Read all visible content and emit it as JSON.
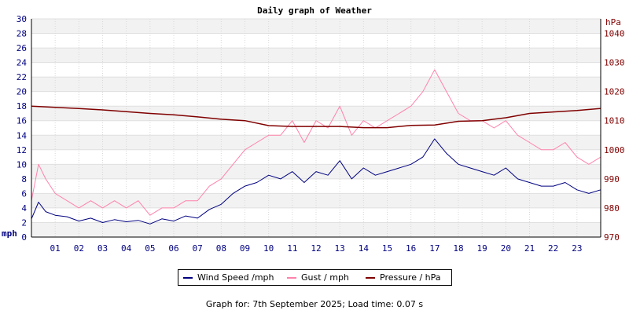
{
  "chart_data": {
    "type": "line",
    "title": "Daily graph of Weather",
    "left_axis": {
      "unit": "mph",
      "ylim": [
        0,
        30
      ],
      "ticks": [
        0,
        2,
        4,
        6,
        8,
        10,
        12,
        14,
        16,
        18,
        20,
        22,
        24,
        26,
        28,
        30
      ],
      "color": "#000080"
    },
    "right_axis": {
      "unit": "hPa",
      "ylim": [
        970,
        1045
      ],
      "ticks": [
        970,
        980,
        990,
        1000,
        1010,
        1020,
        1030,
        1040
      ],
      "color": "#800000"
    },
    "x_ticks": [
      "01",
      "02",
      "03",
      "04",
      "05",
      "06",
      "07",
      "08",
      "09",
      "10",
      "11",
      "12",
      "13",
      "14",
      "15",
      "16",
      "17",
      "18",
      "19",
      "20",
      "21",
      "22",
      "23"
    ],
    "x_range_hours": [
      0,
      24
    ],
    "grid": true,
    "series": [
      {
        "name": "Wind Speed /mph",
        "color": "#000080",
        "axis": "left",
        "x": [
          0,
          0.3,
          0.6,
          1,
          1.5,
          2,
          2.5,
          3,
          3.5,
          4,
          4.5,
          5,
          5.5,
          6,
          6.5,
          7,
          7.5,
          8,
          8.5,
          9,
          9.5,
          10,
          10.5,
          11,
          11.5,
          12,
          12.5,
          13,
          13.5,
          14,
          14.5,
          15,
          15.5,
          16,
          16.5,
          17,
          17.5,
          18,
          18.5,
          19,
          19.5,
          20,
          20.5,
          21,
          21.5,
          22,
          22.5,
          23,
          23.5,
          24
        ],
        "values": [
          2.5,
          4.8,
          3.5,
          3.0,
          2.8,
          2.2,
          2.6,
          2.0,
          2.4,
          2.1,
          2.3,
          1.8,
          2.5,
          2.2,
          2.9,
          2.6,
          3.8,
          4.5,
          6.0,
          7.0,
          7.5,
          8.5,
          8.0,
          9.0,
          7.5,
          9.0,
          8.5,
          10.5,
          8.0,
          9.5,
          8.5,
          9.0,
          9.5,
          10.0,
          11.0,
          13.5,
          11.5,
          10.0,
          9.5,
          9.0,
          8.5,
          9.5,
          8.0,
          7.5,
          7.0,
          7.0,
          7.5,
          6.5,
          6.0,
          6.5
        ]
      },
      {
        "name": "Gust / mph",
        "color": "#ff82ab",
        "axis": "left",
        "x": [
          0,
          0.3,
          0.6,
          1,
          1.5,
          2,
          2.5,
          3,
          3.5,
          4,
          4.5,
          5,
          5.5,
          6,
          6.5,
          7,
          7.5,
          8,
          8.5,
          9,
          9.5,
          10,
          10.5,
          11,
          11.5,
          12,
          12.5,
          13,
          13.5,
          14,
          14.5,
          15,
          15.5,
          16,
          16.5,
          17,
          17.5,
          18,
          18.5,
          19,
          19.5,
          20,
          20.5,
          21,
          21.5,
          22,
          22.5,
          23,
          23.5,
          24
        ],
        "values": [
          5,
          10,
          8,
          6,
          5,
          4,
          5,
          4,
          5,
          4,
          5,
          3,
          4,
          4,
          5,
          5,
          7,
          8,
          10,
          12,
          13,
          14,
          14,
          16,
          13,
          16,
          15,
          18,
          14,
          16,
          15,
          16,
          17,
          18,
          20,
          23,
          20,
          17,
          16,
          16,
          15,
          16,
          14,
          13,
          12,
          12,
          13,
          11,
          10,
          11
        ]
      },
      {
        "name": "Pressure / hPa",
        "color": "#800000",
        "axis": "right",
        "x": [
          0,
          1,
          2,
          3,
          4,
          5,
          6,
          7,
          8,
          9,
          10,
          11,
          12,
          13,
          14,
          15,
          16,
          17,
          18,
          19,
          20,
          21,
          22,
          23,
          24
        ],
        "values": [
          1015,
          1014.6,
          1014.2,
          1013.7,
          1013.1,
          1012.5,
          1012,
          1011.3,
          1010.5,
          1010,
          1008.3,
          1008,
          1008,
          1008,
          1007.6,
          1007.6,
          1008.4,
          1008.5,
          1009.8,
          1010,
          1011,
          1012.5,
          1013,
          1013.5,
          1014.2
        ]
      }
    ],
    "footer": "Graph for: 7th September 2025; Load time: 0.07 s"
  }
}
